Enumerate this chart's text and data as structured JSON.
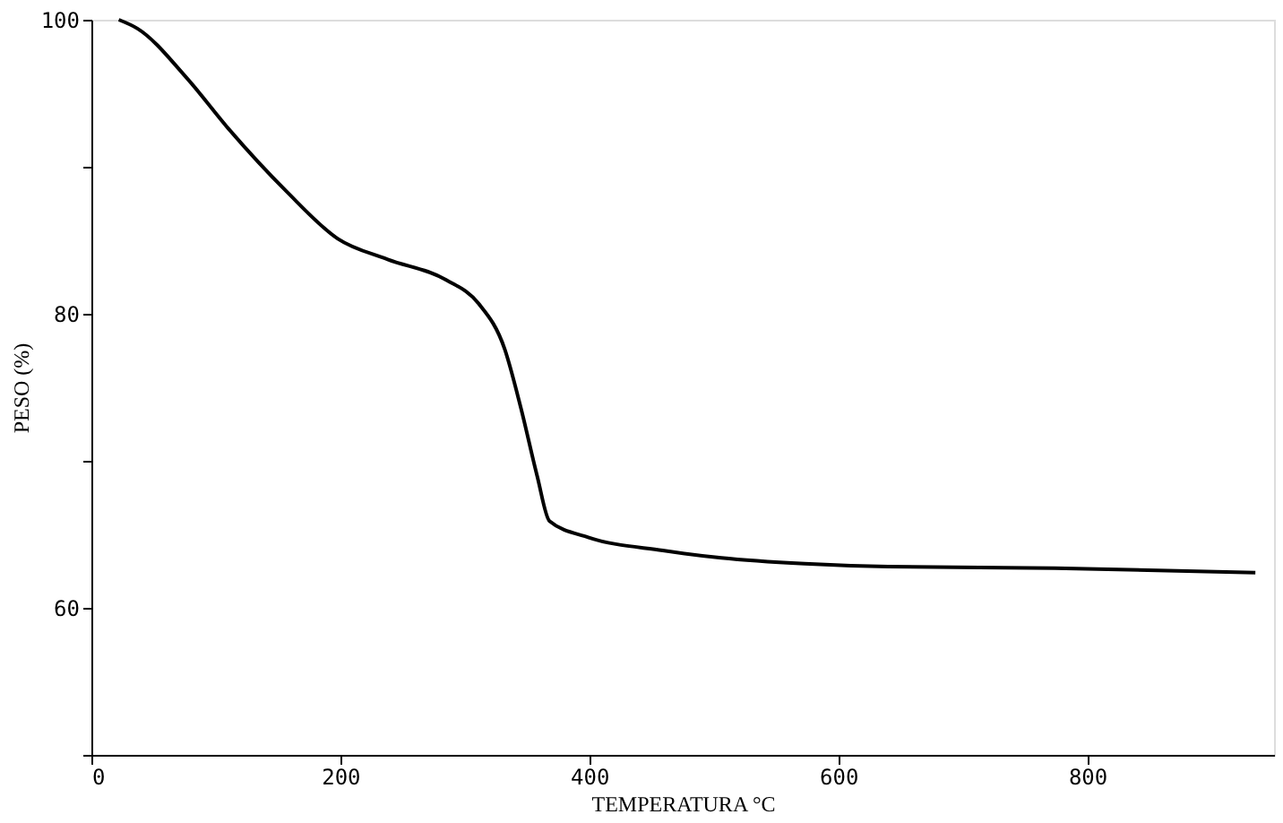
{
  "chart_data": {
    "type": "line",
    "xlabel": "TEMPERATURA °C",
    "ylabel": "PESO (%)",
    "xlim": [
      0,
      950
    ],
    "ylim": [
      50,
      100
    ],
    "xticks": [
      0,
      200,
      400,
      600,
      800
    ],
    "yticks": [
      {
        "value": 50,
        "label": null
      },
      60,
      {
        "value": 70,
        "label": null
      },
      80,
      {
        "value": 90,
        "label": null
      },
      100
    ],
    "grid": false,
    "marker": "none",
    "line_style": "solid",
    "series": [
      {
        "color": "#000000",
        "x": [
          22,
          37,
          77,
          110,
          157,
          198,
          238,
          285,
          311,
          332,
          345,
          358,
          368,
          399,
          459,
          506,
          573,
          640,
          774,
          935
        ],
        "values": [
          100,
          99.4,
          96.0,
          92.6,
          88.3,
          85.1,
          83.7,
          82.3,
          80.7,
          77.6,
          73.6,
          69.0,
          65.9,
          64.8,
          63.9,
          63.4,
          63.0,
          62.8,
          62.7,
          62.4
        ]
      }
    ]
  }
}
